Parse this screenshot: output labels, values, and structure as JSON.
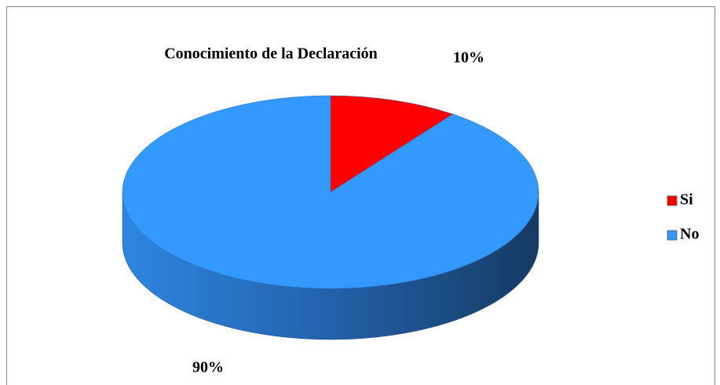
{
  "chart_data": {
    "type": "pie",
    "title": "Conocimiento de la Declaración",
    "categories": [
      "Si",
      "No"
    ],
    "values": [
      10,
      90
    ],
    "value_labels": [
      "10%",
      "90%"
    ],
    "colors": [
      "#ff0000",
      "#3399ff"
    ],
    "legend": "right"
  }
}
